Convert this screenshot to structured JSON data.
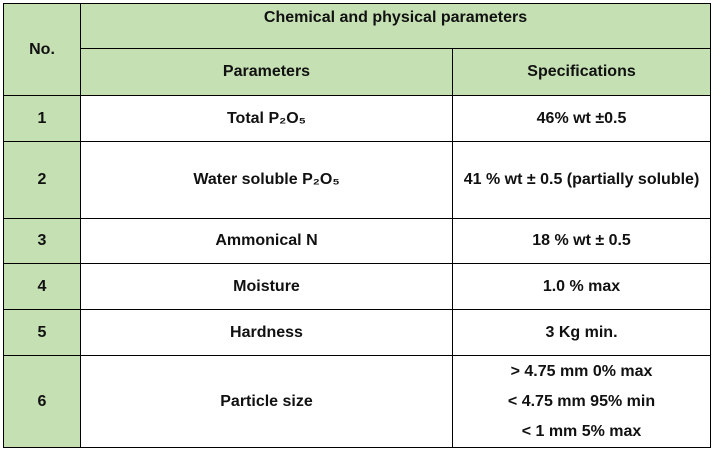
{
  "header": {
    "no_label": "No.",
    "group_title": "Chemical and physical parameters",
    "columns": [
      "Parameters",
      "Specifications"
    ]
  },
  "table": {
    "rows": [
      [
        "1",
        "Total P₂O₅",
        "46% wt ±0.5"
      ],
      [
        "2",
        "Water soluble P₂O₅",
        "41 % wt ± 0.5 (partially soluble)"
      ],
      [
        "3",
        "Ammonical N",
        "18 % wt ± 0.5"
      ],
      [
        "4",
        "Moisture",
        "1.0 % max"
      ],
      [
        "5",
        "Hardness",
        "3 Kg min."
      ],
      [
        "6",
        "Particle size",
        [
          "> 4.75 mm 0% max",
          "< 4.75 mm 95% min",
          "< 1 mm 5% max"
        ]
      ]
    ]
  }
}
